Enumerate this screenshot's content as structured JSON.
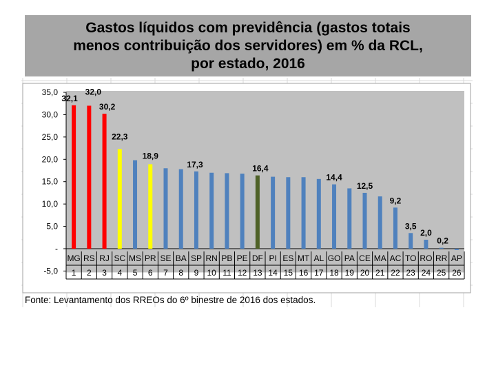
{
  "title_lines": [
    "Gastos líquidos com previdência (gastos totais",
    "menos contribuição dos servidores)  em % da RCL,",
    "por estado, 2016"
  ],
  "footer": "Fonte: Levantamento dos RREOs do 6º binestre de 2016  dos estados.",
  "colors": {
    "plot_bg": "#c0c0c0",
    "red": "#ff0000",
    "yellow": "#ffff00",
    "blue": "#4f81bd",
    "green": "#4f6228",
    "grid": "#d9d9d9",
    "title_bg": "#a6a6a6"
  },
  "chart_data": {
    "type": "bar",
    "title": "Gastos líquidos com previdência (gastos totais menos contribuição dos servidores)  em % da RCL, por estado, 2016",
    "categories": [
      "MG",
      "RS",
      "RJ",
      "SC",
      "MS",
      "PR",
      "SE",
      "BA",
      "SP",
      "RN",
      "PB",
      "PE",
      "DF",
      "PI",
      "ES",
      "MT",
      "AL",
      "GO",
      "PA",
      "CE",
      "MA",
      "AC",
      "TO",
      "RO",
      "RR",
      "AP"
    ],
    "ranks": [
      "1",
      "2",
      "3",
      "4",
      "5",
      "6",
      "7",
      "8",
      "9",
      "10",
      "11",
      "12",
      "13",
      "14",
      "15",
      "16",
      "17",
      "18",
      "19",
      "20",
      "21",
      "22",
      "23",
      "24",
      "25",
      "26"
    ],
    "values": [
      32.1,
      32.0,
      30.2,
      22.3,
      19.8,
      18.9,
      18.0,
      17.8,
      17.3,
      17.0,
      16.9,
      16.8,
      16.4,
      16.1,
      16.0,
      16.0,
      15.6,
      14.4,
      13.5,
      12.5,
      11.7,
      9.2,
      3.5,
      2.0,
      0.2,
      -0.3
    ],
    "bar_colors": [
      "red",
      "red",
      "red",
      "yellow",
      "blue",
      "yellow",
      "blue",
      "blue",
      "blue",
      "blue",
      "blue",
      "blue",
      "green",
      "blue",
      "blue",
      "blue",
      "blue",
      "blue",
      "blue",
      "blue",
      "blue",
      "blue",
      "blue",
      "blue",
      "blue",
      "blue"
    ],
    "data_labels": {
      "0": "32,1",
      "1": "32,0",
      "2": "30,2",
      "3": "22,3",
      "5": "18,9",
      "8": "17,3",
      "12": "16,4",
      "17": "14,4",
      "19": "12,5",
      "21": "9,2",
      "22": "3,5",
      "23": "2,0",
      "24": "0,2"
    },
    "y_ticks": [
      {
        "value": 35,
        "label": "35,0"
      },
      {
        "value": 30,
        "label": "30,0"
      },
      {
        "value": 25,
        "label": "25,0"
      },
      {
        "value": 20,
        "label": "20,0"
      },
      {
        "value": 15,
        "label": "15,0"
      },
      {
        "value": 10,
        "label": "10,0"
      },
      {
        "value": 5,
        "label": "5,0"
      },
      {
        "value": 0,
        "label": "-"
      },
      {
        "value": -5,
        "label": "-5,0"
      }
    ],
    "ylim": [
      -5,
      35
    ],
    "xlabel": "",
    "ylabel": ""
  }
}
